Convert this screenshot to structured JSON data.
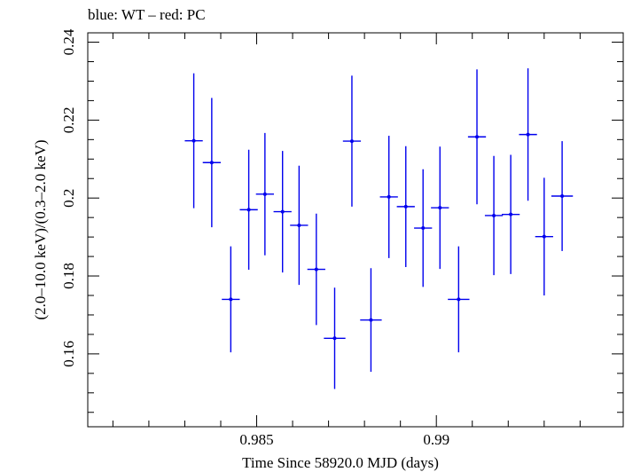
{
  "chart_data": {
    "type": "scatter",
    "title": "blue: WT – red: PC",
    "xlabel": "Time Since 58920.0 MJD (days)",
    "ylabel": "(2.0–10.0 keV)/(0.3–2.0 keV)",
    "xlim": [
      0.9803,
      0.9952
    ],
    "ylim": [
      0.1413,
      0.2424
    ],
    "x_ticks": [
      {
        "value": 0.985,
        "label": "0.985"
      },
      {
        "value": 0.99,
        "label": "0.99"
      }
    ],
    "y_ticks": [
      {
        "value": 0.16,
        "label": "0.16"
      },
      {
        "value": 0.18,
        "label": "0.18"
      },
      {
        "value": 0.2,
        "label": "0.2"
      },
      {
        "value": 0.22,
        "label": "0.22"
      },
      {
        "value": 0.24,
        "label": "0.24"
      }
    ],
    "series": [
      {
        "name": "WT",
        "color": "#0000ee",
        "points": [
          {
            "x": 0.98325,
            "xerr": 0.00025,
            "y": 0.2147,
            "yerr": 0.0173
          },
          {
            "x": 0.98375,
            "xerr": 0.00025,
            "y": 0.2091,
            "yerr": 0.0166
          },
          {
            "x": 0.98428,
            "xerr": 0.00025,
            "y": 0.174,
            "yerr": 0.0136
          },
          {
            "x": 0.98478,
            "xerr": 0.00025,
            "y": 0.197,
            "yerr": 0.0154
          },
          {
            "x": 0.98523,
            "xerr": 0.00025,
            "y": 0.201,
            "yerr": 0.0157
          },
          {
            "x": 0.98572,
            "xerr": 0.00025,
            "y": 0.1965,
            "yerr": 0.0156
          },
          {
            "x": 0.98618,
            "xerr": 0.00025,
            "y": 0.193,
            "yerr": 0.0153
          },
          {
            "x": 0.98666,
            "xerr": 0.00025,
            "y": 0.1817,
            "yerr": 0.0143
          },
          {
            "x": 0.98717,
            "xerr": 0.0003,
            "y": 0.164,
            "yerr": 0.013
          },
          {
            "x": 0.98765,
            "xerr": 0.00025,
            "y": 0.2146,
            "yerr": 0.0168
          },
          {
            "x": 0.98818,
            "xerr": 0.0003,
            "y": 0.1687,
            "yerr": 0.0133
          },
          {
            "x": 0.98868,
            "xerr": 0.00025,
            "y": 0.2003,
            "yerr": 0.0157
          },
          {
            "x": 0.98915,
            "xerr": 0.00025,
            "y": 0.1978,
            "yerr": 0.0155
          },
          {
            "x": 0.98963,
            "xerr": 0.00025,
            "y": 0.1923,
            "yerr": 0.0151
          },
          {
            "x": 0.9901,
            "xerr": 0.00025,
            "y": 0.1975,
            "yerr": 0.0157
          },
          {
            "x": 0.99062,
            "xerr": 0.0003,
            "y": 0.174,
            "yerr": 0.0136
          },
          {
            "x": 0.99113,
            "xerr": 0.00025,
            "y": 0.2157,
            "yerr": 0.0173
          },
          {
            "x": 0.9916,
            "xerr": 0.00025,
            "y": 0.1955,
            "yerr": 0.0153
          },
          {
            "x": 0.99207,
            "xerr": 0.00025,
            "y": 0.1958,
            "yerr": 0.0153
          },
          {
            "x": 0.99255,
            "xerr": 0.00025,
            "y": 0.2163,
            "yerr": 0.017
          },
          {
            "x": 0.993,
            "xerr": 0.00025,
            "y": 0.1901,
            "yerr": 0.0151
          },
          {
            "x": 0.9935,
            "xerr": 0.0003,
            "y": 0.2005,
            "yerr": 0.0141
          }
        ]
      }
    ]
  }
}
